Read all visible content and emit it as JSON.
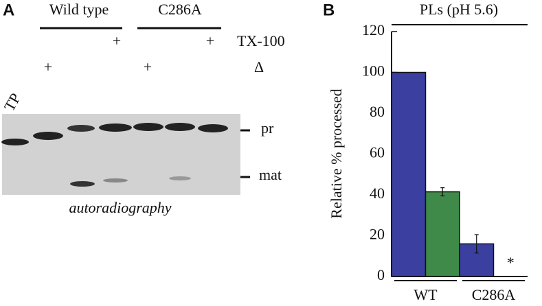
{
  "panel_a": {
    "label": "A",
    "groups": [
      "Wild type",
      "C286A"
    ],
    "rows": [
      "TX-100",
      "Δ"
    ],
    "plus": "+",
    "lane_label": "TP",
    "bands": [
      "pr",
      "mat"
    ],
    "caption": "autoradiography"
  },
  "chart_data": {
    "type": "bar",
    "panel_label": "B",
    "title": "PLs (pH 5.6)",
    "y_label": "Relative % processed",
    "categories": [
      "WT",
      "C286A"
    ],
    "series": [
      {
        "color": "#3a3fa0",
        "values": [
          100,
          16
        ],
        "errors": [
          null,
          4.5
        ]
      },
      {
        "color": "#3f8a48",
        "values": [
          41.5,
          null
        ],
        "errors": [
          2,
          null
        ]
      }
    ],
    "annotation": "*",
    "ylim": [
      0,
      120
    ],
    "yticks": [
      0,
      20,
      40,
      60,
      80,
      100,
      120
    ]
  }
}
